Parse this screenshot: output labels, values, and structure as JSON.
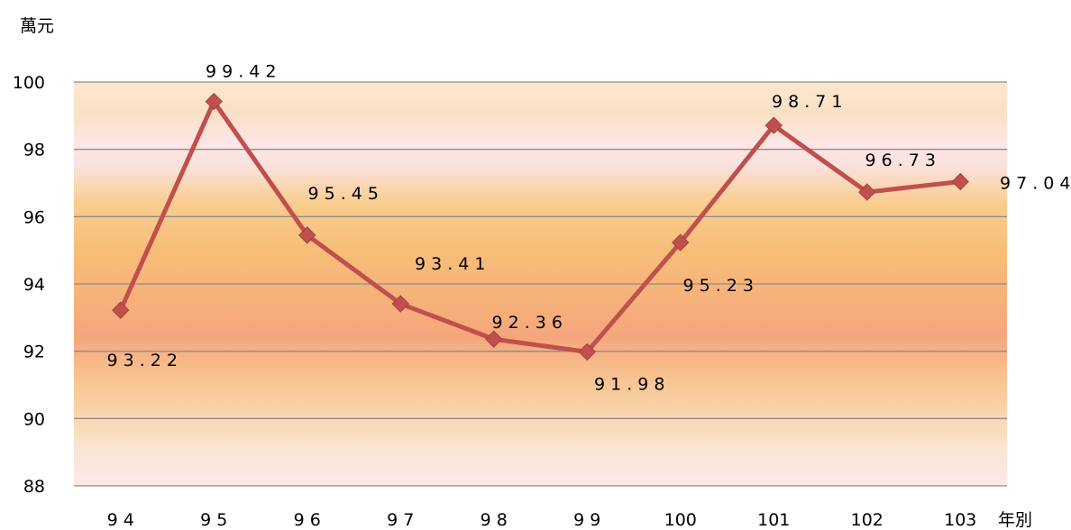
{
  "chart_data": {
    "type": "line",
    "categories": [
      "9 4",
      "9 5",
      "9 6",
      "9 7",
      "9 8",
      "9 9",
      "100",
      "101",
      "102",
      "103"
    ],
    "series": [
      {
        "values": [
          93.22,
          99.42,
          95.45,
          93.41,
          92.36,
          91.98,
          95.23,
          98.71,
          96.73,
          97.04
        ],
        "data_labels": [
          "9 3 . 2 2",
          "9 9 . 4 2",
          "9 5 . 4 5",
          "9 3 . 4 1",
          "9 2 . 3 6",
          "9 1 . 9 8",
          "9 5 . 2 3",
          "9 8 . 7 1",
          "9 6 . 7 3",
          "9 7 . 0 4"
        ],
        "color": "#c0504d",
        "marker": "diamond"
      }
    ],
    "title": "",
    "xlabel": "年別",
    "ylabel": "萬元",
    "ylim": [
      88,
      100
    ],
    "yticks": [
      88,
      90,
      92,
      94,
      96,
      98,
      100
    ],
    "ytick_labels": [
      "88",
      "90",
      "92",
      "94",
      "96",
      "98",
      "100"
    ],
    "grid": true,
    "legend": "none",
    "plot_background": "gradient: peach-orange with light pink bands"
  }
}
